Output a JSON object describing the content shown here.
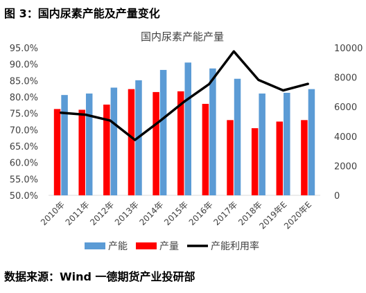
{
  "figure_title": "图 3：国内尿素产能及产量变化",
  "source_note": "数据来源：Wind 一德期货产业投研部",
  "chart_data": {
    "type": "bar",
    "title": "国内尿素产能产量",
    "categories": [
      "2010年",
      "2011年",
      "2012年",
      "2013年",
      "2014年",
      "2015年",
      "2016年",
      "2017年",
      "2018年",
      "2019年E",
      "2020年E"
    ],
    "series": [
      {
        "name": "产能",
        "type": "bar",
        "axis": "right",
        "color": "#5B9BD5",
        "values": [
          6800,
          6900,
          7300,
          7800,
          8500,
          9000,
          8600,
          7900,
          6900,
          6950,
          7200
        ]
      },
      {
        "name": "产量",
        "type": "bar",
        "axis": "right",
        "color": "#FF0000",
        "values": [
          5850,
          5800,
          6150,
          7200,
          7000,
          7050,
          6200,
          5100,
          4550,
          5000,
          5100
        ]
      },
      {
        "name": "产能利用率",
        "type": "line",
        "axis": "left",
        "color": "#000000",
        "values": [
          75.2,
          74.6,
          72.8,
          66.9,
          72.6,
          78.6,
          83.9,
          93.9,
          85.2,
          82.0,
          84.0
        ]
      }
    ],
    "left_axis": {
      "min": 50,
      "max": 95,
      "step": 5,
      "ticks": [
        "50.0%",
        "55.0%",
        "60.0%",
        "65.0%",
        "70.0%",
        "75.0%",
        "80.0%",
        "85.0%",
        "90.0%",
        "95.0%"
      ]
    },
    "right_axis": {
      "min": 0,
      "max": 10000,
      "step": 2000,
      "ticks": [
        "0",
        "2000",
        "4000",
        "6000",
        "8000",
        "10000"
      ]
    },
    "legend_position": "bottom",
    "grid": false
  }
}
